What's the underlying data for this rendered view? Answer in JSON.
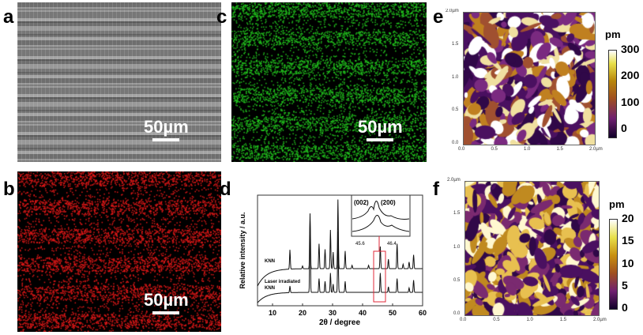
{
  "panels": {
    "a": {
      "label": "a",
      "scale": "50µm"
    },
    "b": {
      "label": "b",
      "scale": "50µm"
    },
    "c": {
      "label": "c",
      "scale": "50µm"
    },
    "d": {
      "label": "d"
    },
    "e": {
      "label": "e",
      "unit": "pm",
      "colorbar_ticks": [
        "300",
        "200",
        "100",
        "0"
      ],
      "x_ticks": [
        "0.0",
        "0.5",
        "1.0",
        "1.5",
        "2.0µm"
      ],
      "y_ticks": [
        "2.0µm",
        "1.5",
        "1.0",
        "0.5",
        "0.0"
      ]
    },
    "f": {
      "label": "f",
      "unit": "pm",
      "colorbar_ticks": [
        "20",
        "15",
        "10",
        "5",
        "0"
      ],
      "x_ticks": [
        "0.0",
        "0.5",
        "1.0",
        "1.5",
        "2.0µm"
      ],
      "y_ticks": [
        "2.0µm",
        "1.5",
        "1.0",
        "0.5",
        "0.0"
      ]
    }
  },
  "colors": {
    "red_map": "#e01818",
    "green_map": "#22c41e",
    "highlight": "#e0283a"
  },
  "chart_data": {
    "type": "line",
    "xlabel": "2θ / degree",
    "ylabel": "Relative intensity / a.u.",
    "xlim": [
      5,
      60
    ],
    "x_ticks": [
      "10",
      "20",
      "30",
      "40",
      "50",
      "60"
    ],
    "series": [
      {
        "name": "KNN",
        "peaks": [
          [
            15.8,
            0.35
          ],
          [
            20,
            0.05
          ],
          [
            22.5,
            1.0
          ],
          [
            25.5,
            0.45
          ],
          [
            27.5,
            0.35
          ],
          [
            29.3,
            0.7
          ],
          [
            30.2,
            0.3
          ],
          [
            31.8,
            1.25
          ],
          [
            34.2,
            0.32
          ],
          [
            36.5,
            0.06
          ],
          [
            42,
            0.06
          ],
          [
            45.9,
            0.4
          ],
          [
            48.6,
            0.17
          ],
          [
            51.5,
            0.45
          ],
          [
            53.5,
            0.08
          ],
          [
            55.5,
            0.12
          ],
          [
            57,
            0.25
          ]
        ]
      },
      {
        "name": "Laser irradiated KNN",
        "peaks": [
          [
            15.8,
            0.12
          ],
          [
            22.5,
            1.3
          ],
          [
            25.5,
            0.25
          ],
          [
            27.5,
            0.2
          ],
          [
            29.3,
            0.35
          ],
          [
            30.2,
            0.15
          ],
          [
            31.8,
            1.1
          ],
          [
            34.2,
            0.2
          ],
          [
            45.9,
            0.35
          ],
          [
            48.6,
            0.1
          ],
          [
            51.5,
            0.25
          ],
          [
            55.5,
            0.08
          ],
          [
            57,
            0.22
          ]
        ]
      }
    ],
    "labels": [
      "KNN",
      "Laser irradiated",
      "KNN"
    ],
    "inset": {
      "peaks": [
        "(002)",
        "(200)"
      ],
      "x_ticks": [
        "45.6",
        "46.4"
      ]
    }
  }
}
